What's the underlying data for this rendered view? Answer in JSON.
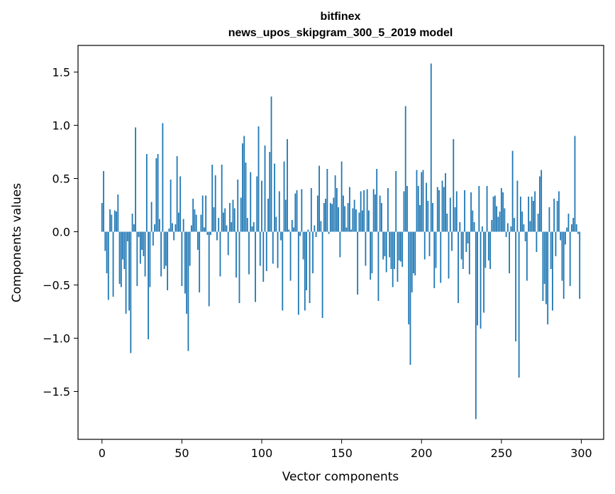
{
  "chart_data": {
    "type": "bar",
    "title": "bitfinex",
    "subtitle": "news_upos_skipgram_300_5_2019 model",
    "xlabel": "Vector components",
    "ylabel": "Components values",
    "xlim": [
      -15,
      314
    ],
    "ylim": [
      -1.95,
      1.75
    ],
    "x_ticks": [
      0,
      50,
      100,
      150,
      200,
      250,
      300
    ],
    "y_ticks": [
      -1.5,
      -1.0,
      -0.5,
      0.0,
      0.5,
      1.0,
      1.5
    ],
    "x_tick_labels": [
      "0",
      "50",
      "100",
      "150",
      "200",
      "250",
      "300"
    ],
    "y_tick_labels": [
      "−1.5",
      "−1.0",
      "−0.5",
      "0.0",
      "0.5",
      "1.0",
      "1.5"
    ],
    "bar_color": "#1f77b4",
    "x": [
      0,
      1,
      2,
      3,
      4,
      5,
      6,
      7,
      8,
      9,
      10,
      11,
      12,
      13,
      14,
      15,
      16,
      17,
      18,
      19,
      20,
      21,
      22,
      23,
      24,
      25,
      26,
      27,
      28,
      29,
      30,
      31,
      32,
      33,
      34,
      35,
      36,
      37,
      38,
      39,
      40,
      41,
      42,
      43,
      44,
      45,
      46,
      47,
      48,
      49,
      50,
      51,
      52,
      53,
      54,
      55,
      56,
      57,
      58,
      59,
      60,
      61,
      62,
      63,
      64,
      65,
      66,
      67,
      68,
      69,
      70,
      71,
      72,
      73,
      74,
      75,
      76,
      77,
      78,
      79,
      80,
      81,
      82,
      83,
      84,
      85,
      86,
      87,
      88,
      89,
      90,
      91,
      92,
      93,
      94,
      95,
      96,
      97,
      98,
      99,
      100,
      101,
      102,
      103,
      104,
      105,
      106,
      107,
      108,
      109,
      110,
      111,
      112,
      113,
      114,
      115,
      116,
      117,
      118,
      119,
      120,
      121,
      122,
      123,
      124,
      125,
      126,
      127,
      128,
      129,
      130,
      131,
      132,
      133,
      134,
      135,
      136,
      137,
      138,
      139,
      140,
      141,
      142,
      143,
      144,
      145,
      146,
      147,
      148,
      149,
      150,
      151,
      152,
      153,
      154,
      155,
      156,
      157,
      158,
      159,
      160,
      161,
      162,
      163,
      164,
      165,
      166,
      167,
      168,
      169,
      170,
      171,
      172,
      173,
      174,
      175,
      176,
      177,
      178,
      179,
      180,
      181,
      182,
      183,
      184,
      185,
      186,
      187,
      188,
      189,
      190,
      191,
      192,
      193,
      194,
      195,
      196,
      197,
      198,
      199,
      200,
      201,
      202,
      203,
      204,
      205,
      206,
      207,
      208,
      209,
      210,
      211,
      212,
      213,
      214,
      215,
      216,
      217,
      218,
      219,
      220,
      221,
      222,
      223,
      224,
      225,
      226,
      227,
      228,
      229,
      230,
      231,
      232,
      233,
      234,
      235,
      236,
      237,
      238,
      239,
      240,
      241,
      242,
      243,
      244,
      245,
      246,
      247,
      248,
      249,
      250,
      251,
      252,
      253,
      254,
      255,
      256,
      257,
      258,
      259,
      260,
      261,
      262,
      263,
      264,
      265,
      266,
      267,
      268,
      269,
      270,
      271,
      272,
      273,
      274,
      275,
      276,
      277,
      278,
      279,
      280,
      281,
      282,
      283,
      284,
      285,
      286,
      287,
      288,
      289,
      290,
      291,
      292,
      293,
      294,
      295,
      296,
      297,
      298,
      299
    ],
    "values": [
      0.27,
      0.57,
      -0.18,
      -0.39,
      -0.64,
      0.21,
      0.16,
      -0.61,
      0.2,
      0.19,
      0.35,
      -0.49,
      -0.52,
      -0.26,
      -0.35,
      -0.77,
      -0.09,
      -0.74,
      -1.14,
      0.17,
      0.07,
      0.98,
      -0.51,
      -0.05,
      -0.3,
      -0.17,
      -0.23,
      -0.42,
      0.73,
      -1.01,
      -0.52,
      0.28,
      -0.13,
      0.07,
      0.69,
      0.73,
      0.12,
      -0.42,
      1.02,
      -0.35,
      -0.32,
      -0.55,
      0.03,
      0.49,
      0.08,
      -0.08,
      0.07,
      0.71,
      0.18,
      0.52,
      -0.51,
      0.12,
      -0.58,
      -0.77,
      -1.12,
      -0.32,
      0.06,
      0.31,
      0.21,
      0.16,
      -0.17,
      -0.57,
      0.16,
      0.34,
      0.04,
      0.34,
      -0.03,
      -0.7,
      -0.03,
      0.63,
      0.23,
      0.53,
      -0.08,
      0.13,
      -0.42,
      0.63,
      0.18,
      0.22,
      0.06,
      -0.22,
      0.27,
      0.09,
      0.3,
      0.22,
      -0.43,
      0.49,
      -0.67,
      0.32,
      0.83,
      0.9,
      0.65,
      0.13,
      -0.4,
      0.56,
      0.05,
      0.09,
      -0.66,
      0.52,
      0.99,
      -0.32,
      0.48,
      -0.47,
      0.81,
      -0.37,
      0.31,
      0.75,
      1.27,
      -0.3,
      0.64,
      0.14,
      -0.34,
      0.38,
      -0.08,
      -0.74,
      0.66,
      0.3,
      0.87,
      0.02,
      -0.46,
      0.11,
      0.04,
      0.36,
      0.39,
      -0.78,
      -0.04,
      0.4,
      -0.26,
      -0.74,
      -0.55,
      0.02,
      -0.67,
      0.41,
      -0.39,
      0.06,
      -0.05,
      0.34,
      0.62,
      0.1,
      -0.81,
      0.27,
      0.31,
      0.59,
      -0.02,
      0.27,
      0.26,
      0.32,
      0.53,
      0.41,
      0.23,
      -0.24,
      0.66,
      0.34,
      0.24,
      0.04,
      0.27,
      0.42,
      0.02,
      0.22,
      0.3,
      0.21,
      -0.59,
      0.18,
      0.38,
      0.2,
      0.39,
      -0.32,
      0.4,
      0.2,
      -0.45,
      -0.39,
      0.4,
      0.35,
      0.59,
      -0.65,
      0.34,
      0.27,
      -0.26,
      -0.23,
      -0.38,
      0.41,
      -0.24,
      -0.35,
      -0.52,
      -0.35,
      0.57,
      -0.47,
      -0.27,
      -0.28,
      -0.33,
      0.38,
      1.18,
      0.43,
      -0.87,
      -1.25,
      -0.57,
      -0.39,
      -0.41,
      0.58,
      0.43,
      0.25,
      0.56,
      0.58,
      -0.26,
      0.46,
      0.29,
      -0.23,
      1.58,
      0.27,
      -0.53,
      -0.34,
      0.42,
      0.39,
      -0.48,
      0.48,
      0.42,
      0.55,
      0.17,
      -0.44,
      0.32,
      -0.18,
      0.87,
      0.23,
      0.38,
      -0.67,
      0.09,
      -0.26,
      -0.35,
      0.39,
      -0.19,
      -0.11,
      -0.4,
      0.37,
      0.2,
      0.09,
      -1.76,
      -0.88,
      0.43,
      -0.91,
      0.05,
      -0.76,
      -0.34,
      0.43,
      -0.27,
      -0.35,
      0.11,
      0.33,
      0.34,
      0.24,
      0.14,
      0.19,
      0.41,
      0.37,
      0.22,
      -0.05,
      0.08,
      -0.39,
      0.05,
      0.76,
      0.13,
      -1.03,
      0.48,
      -1.37,
      0.33,
      0.19,
      0.07,
      -0.09,
      -0.46,
      0.33,
      0.1,
      0.33,
      0.29,
      0.38,
      -0.19,
      0.17,
      0.52,
      0.58,
      -0.65,
      -0.49,
      -0.68,
      -0.87,
      0.23,
      -0.35,
      -0.74,
      0.31,
      -0.23,
      0.29,
      0.38,
      -0.08,
      -0.46,
      -0.63,
      -0.12,
      0.04,
      0.17,
      -0.51,
      0.07,
      0.13,
      0.9,
      0.07,
      -0.02,
      -0.63
    ]
  }
}
